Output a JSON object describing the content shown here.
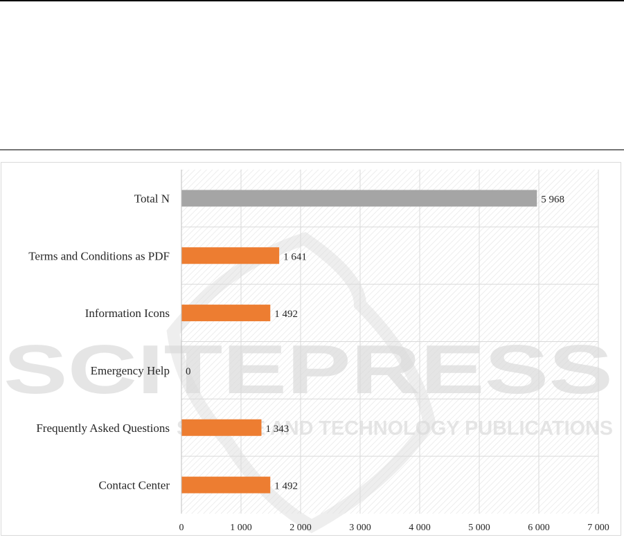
{
  "chart_data": {
    "type": "bar",
    "orientation": "horizontal",
    "categories": [
      "Total N",
      "Terms and Conditions as PDF",
      "Information Icons",
      "Emergency Help",
      "Frequently Asked Questions",
      "Contact Center"
    ],
    "values": [
      5968,
      1641,
      1492,
      0,
      1343,
      1492
    ],
    "value_labels": [
      "5 968",
      "1 641",
      "1 492",
      "0",
      "1 343",
      "1 492"
    ],
    "bar_colors": [
      "#a5a5a5",
      "#ed7d31",
      "#ed7d31",
      "#ed7d31",
      "#ed7d31",
      "#ed7d31"
    ],
    "xlim": [
      0,
      7000
    ],
    "x_ticks": [
      0,
      1000,
      2000,
      3000,
      4000,
      5000,
      6000,
      7000
    ],
    "x_tick_labels": [
      "0",
      "1 000",
      "2 000",
      "3 000",
      "4 000",
      "5 000",
      "6 000",
      "7 000"
    ],
    "title": "",
    "xlabel": "",
    "ylabel": "",
    "grid": true,
    "legend": false
  },
  "watermark": {
    "main": "SCITEPRESS",
    "sub": "SCIENCE AND TECHNOLOGY PUBLICATIONS"
  }
}
